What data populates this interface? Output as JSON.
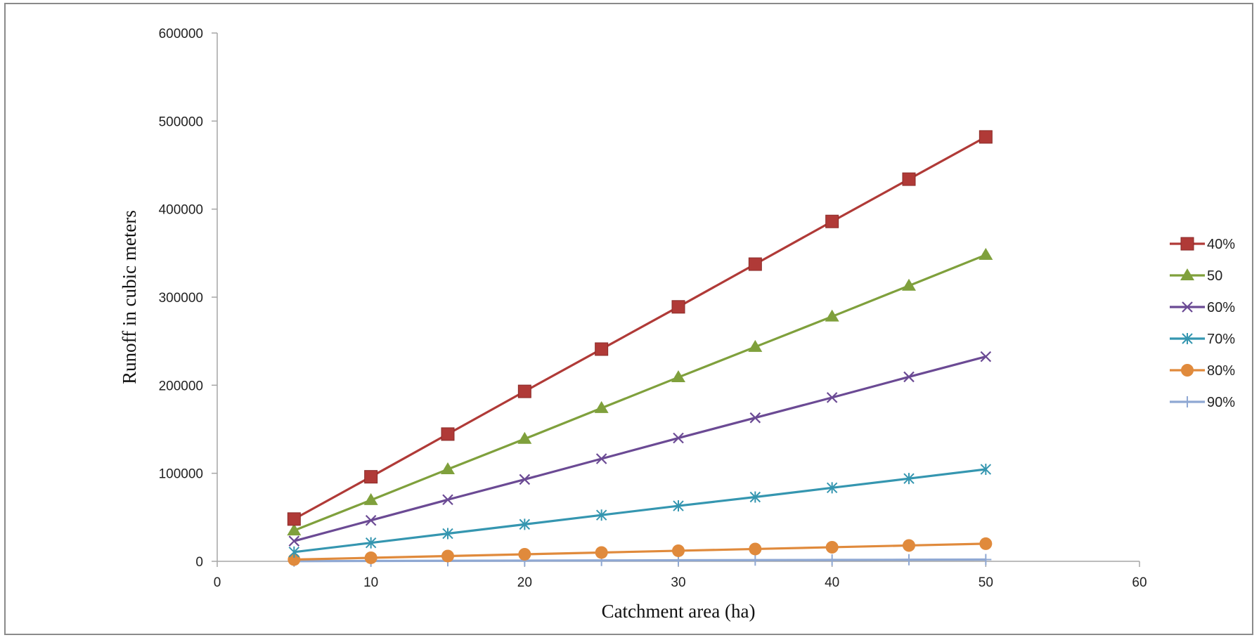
{
  "chart_data": {
    "type": "line",
    "xlabel": "Catchment area (ha)",
    "ylabel": "Runoff in cubic meters",
    "xlim": [
      0,
      60
    ],
    "ylim": [
      0,
      600000
    ],
    "xticks": [
      0,
      10,
      20,
      30,
      40,
      50,
      60
    ],
    "yticks": [
      0,
      100000,
      200000,
      300000,
      400000,
      500000,
      600000
    ],
    "xtick_labels": [
      "0",
      "10",
      "20",
      "30",
      "40",
      "50",
      "60"
    ],
    "ytick_labels": [
      "0",
      "100000",
      "200000",
      "300000",
      "400000",
      "500000",
      "600000"
    ],
    "grid": false,
    "legend_position": "right",
    "x": [
      5,
      10,
      15,
      20,
      25,
      30,
      35,
      40,
      45,
      50
    ],
    "series": [
      {
        "name": "40%",
        "color": "#b03a37",
        "marker": "square",
        "values": [
          48000,
          96000,
          144500,
          193000,
          241000,
          289000,
          337500,
          386000,
          434000,
          482000
        ]
      },
      {
        "name": "50",
        "color": "#7fa03c",
        "marker": "triangle",
        "values": [
          35000,
          69500,
          104500,
          139000,
          174000,
          209000,
          243500,
          278000,
          313000,
          348000
        ]
      },
      {
        "name": "60%",
        "color": "#6b4a94",
        "marker": "x",
        "values": [
          23000,
          46500,
          70000,
          93000,
          116500,
          140000,
          163000,
          186000,
          209500,
          232500
        ]
      },
      {
        "name": "70%",
        "color": "#3596b0",
        "marker": "asterisk",
        "values": [
          10500,
          21000,
          31500,
          42000,
          52500,
          63000,
          73000,
          83500,
          94000,
          104500
        ]
      },
      {
        "name": "80%",
        "color": "#e08a3c",
        "marker": "circle",
        "values": [
          2000,
          4000,
          6000,
          8000,
          10000,
          12000,
          14000,
          16000,
          18000,
          20000
        ]
      },
      {
        "name": "90%",
        "color": "#8fa8d3",
        "marker": "plus",
        "values": [
          200,
          400,
          600,
          800,
          1000,
          1200,
          1400,
          1600,
          1800,
          2000
        ]
      }
    ]
  }
}
